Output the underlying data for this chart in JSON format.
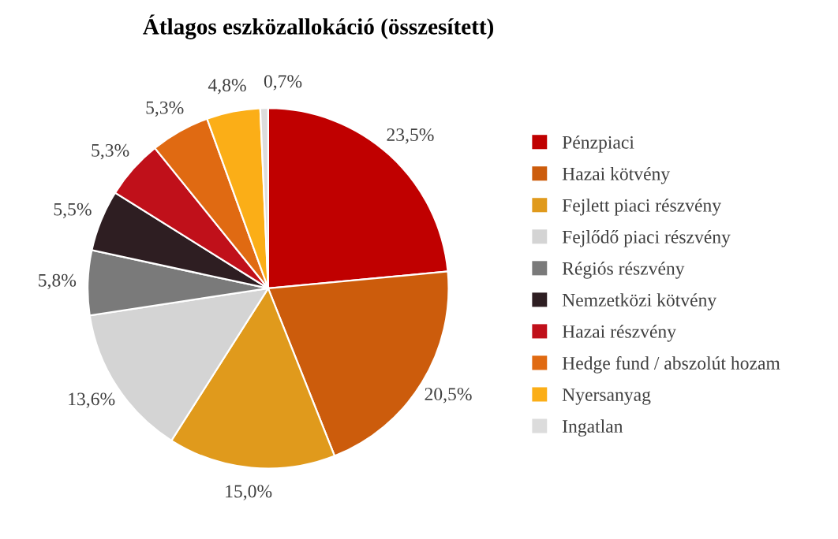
{
  "chart_data": {
    "type": "pie",
    "title": "Átlagos eszközallokáció (összesített)",
    "categories": [
      "Pénzpiaci",
      "Hazai kötvény",
      "Fejlett piaci részvény",
      "Fejlődő piaci részvény",
      "Régiós részvény",
      "Nemzetközi kötvény",
      "Hazai részvény",
      "Hedge fund / abszolút hozam",
      "Nyersanyag",
      "Ingatlan"
    ],
    "values": [
      23.5,
      20.5,
      15.0,
      13.6,
      5.8,
      5.5,
      5.3,
      5.3,
      4.8,
      0.7
    ],
    "value_labels": [
      "23,5%",
      "20,5%",
      "15,0%",
      "13,6%",
      "5,8%",
      "5,5%",
      "5,3%",
      "5,3%",
      "4,8%",
      "0,7%"
    ],
    "colors": [
      "#c00000",
      "#cc5c0c",
      "#e09a1c",
      "#d4d4d4",
      "#7a7a7a",
      "#2e1e22",
      "#c0101a",
      "#e06a12",
      "#fbae17",
      "#dcdcdc"
    ],
    "legend": "right"
  }
}
